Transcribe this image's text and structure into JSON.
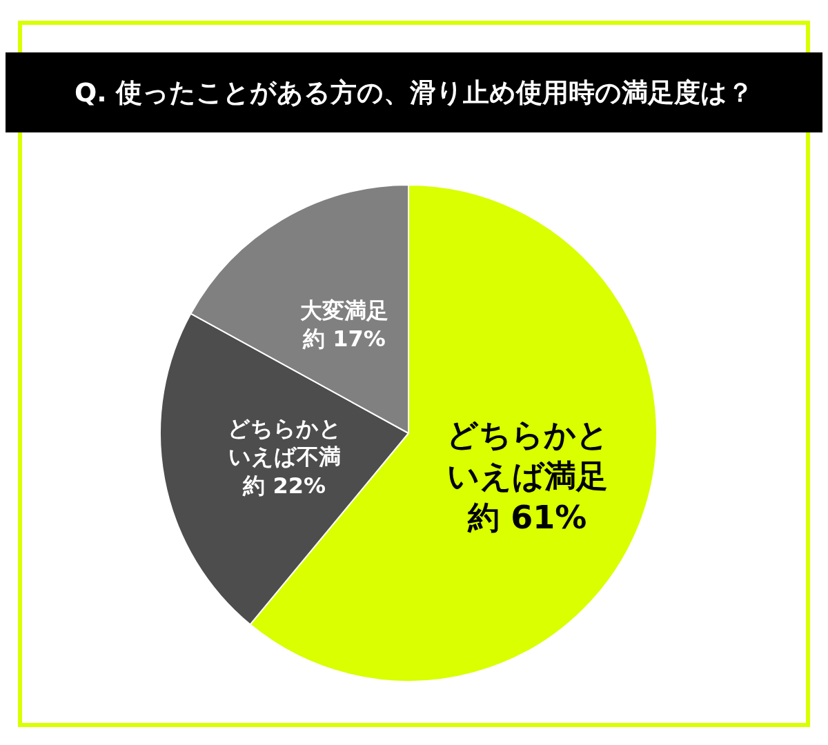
{
  "chart_data": {
    "type": "pie",
    "title": "Q. 使ったことがある方の、滑り止め使用時の満足度は？",
    "categories": [
      "どちらかといえば満足",
      "どちらかといえば不満",
      "大変満足"
    ],
    "values": [
      61,
      22,
      17
    ],
    "colors": [
      "#d9ff00",
      "#4d4d4d",
      "#808080"
    ],
    "value_labels": [
      "約 61%",
      "約 22%",
      "約 17%"
    ]
  }
}
